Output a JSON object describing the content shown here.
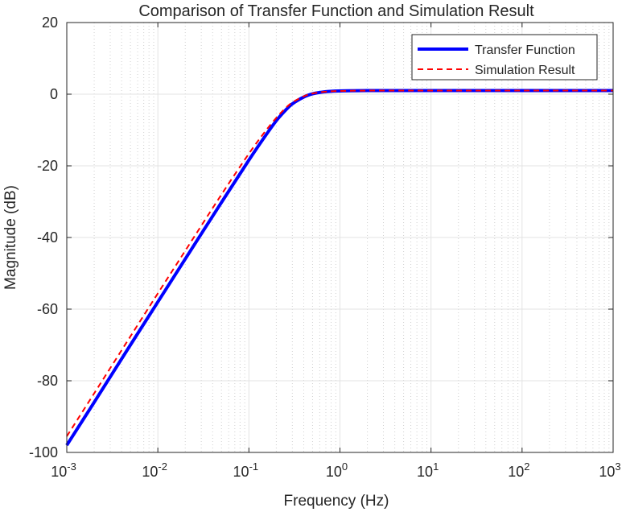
{
  "chart_data": {
    "type": "line",
    "title": "Comparison of Transfer Function and Simulation Result",
    "xlabel": "Frequency (Hz)",
    "ylabel": "Magnitude (dB)",
    "x_scale": "log",
    "xlim": [
      0.001,
      1000
    ],
    "ylim": [
      -100,
      20
    ],
    "grid": true,
    "minor_grid": true,
    "legend_position": "top-right",
    "x_ticks": [
      {
        "base": "10",
        "exp": "-3",
        "value": 0.001
      },
      {
        "base": "10",
        "exp": "-2",
        "value": 0.01
      },
      {
        "base": "10",
        "exp": "-1",
        "value": 0.1
      },
      {
        "base": "10",
        "exp": "0",
        "value": 1
      },
      {
        "base": "10",
        "exp": "1",
        "value": 10
      },
      {
        "base": "10",
        "exp": "2",
        "value": 100
      },
      {
        "base": "10",
        "exp": "3",
        "value": 1000
      }
    ],
    "y_ticks": [
      "20",
      "0",
      "-20",
      "-40",
      "-60",
      "-80",
      "-100"
    ],
    "series": [
      {
        "name": "Transfer Function",
        "color": "#0000ff",
        "style": "solid",
        "x": [
          0.001,
          0.002,
          0.005,
          0.01,
          0.02,
          0.05,
          0.1,
          0.15,
          0.2,
          0.25,
          0.3,
          0.4,
          0.5,
          0.7,
          1,
          2,
          5,
          10,
          100,
          1000
        ],
        "y": [
          -98,
          -86.0,
          -70.0,
          -58.0,
          -46.0,
          -30.2,
          -18.4,
          -11.8,
          -7.4,
          -4.6,
          -2.7,
          -0.8,
          0.1,
          0.7,
          0.9,
          1.0,
          1.0,
          1.0,
          1.0,
          1.0
        ]
      },
      {
        "name": "Simulation Result",
        "color": "#ff0000",
        "style": "dashed",
        "x": [
          0.001,
          0.002,
          0.005,
          0.01,
          0.02,
          0.05,
          0.1,
          0.15,
          0.2,
          0.25,
          0.3,
          0.4,
          0.5,
          0.7,
          1,
          2,
          5,
          10,
          100,
          1000
        ],
        "y": [
          -95.5,
          -83.5,
          -67.6,
          -55.6,
          -43.7,
          -28.0,
          -16.6,
          -10.5,
          -6.6,
          -4.0,
          -2.3,
          -0.6,
          0.2,
          0.7,
          0.9,
          1.0,
          1.0,
          1.0,
          1.0,
          1.0
        ]
      }
    ]
  }
}
